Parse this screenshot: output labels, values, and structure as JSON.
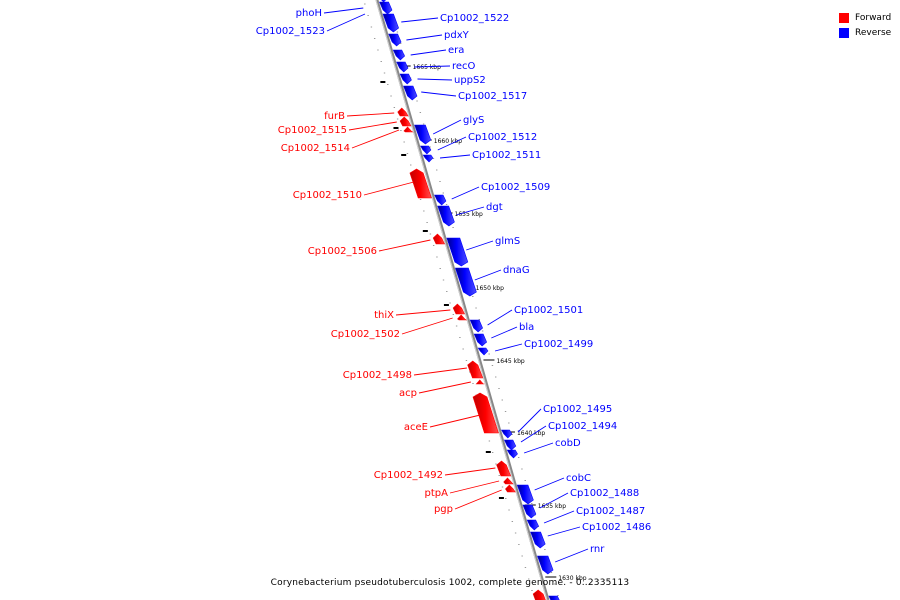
{
  "legend": {
    "forward_label": "Forward",
    "reverse_label": "Reverse",
    "forward_color": "#ff0000",
    "reverse_color": "#0000ff"
  },
  "caption": "Corynebacterium pseudotuberculosis 1002, complete genome. - 0..2335113",
  "backbone_color": "#888888",
  "scale_labels": [
    "1665 kbp",
    "1660 kbp",
    "1655 kbp",
    "1650 kbp",
    "1645 kbp",
    "1640 kbp",
    "1635 kbp",
    "1630 kbp"
  ],
  "forward_genes": [
    "furB",
    "Cp1002_1515",
    "Cp1002_1514",
    "Cp1002_1510",
    "Cp1002_1506",
    "thiX",
    "Cp1002_1502",
    "Cp1002_1498",
    "acp",
    "aceE",
    "Cp1002_1492",
    "ptpA",
    "pgp"
  ],
  "reverse_genes": [
    "phoH",
    "Cp1002_1523",
    "Cp1002_1522",
    "pdxY",
    "era",
    "recO",
    "uppS2",
    "Cp1002_1517",
    "glyS",
    "Cp1002_1512",
    "Cp1002_1511",
    "Cp1002_1509",
    "dgt",
    "glmS",
    "dnaG",
    "Cp1002_1501",
    "bla",
    "Cp1002_1499",
    "Cp1002_1495",
    "Cp1002_1494",
    "cobD",
    "cobC",
    "Cp1002_1488",
    "Cp1002_1487",
    "Cp1002_1486",
    "rnr"
  ]
}
